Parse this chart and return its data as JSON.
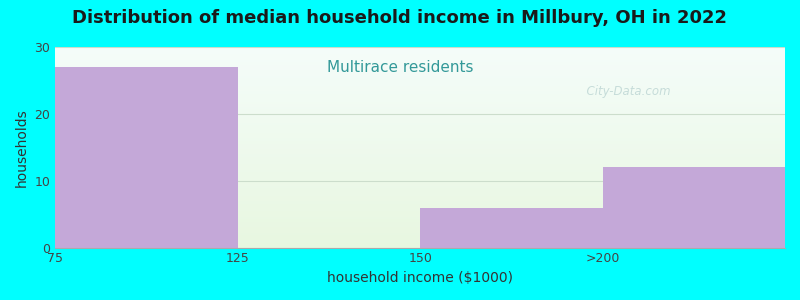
{
  "title": "Distribution of median household income in Millbury, OH in 2022",
  "subtitle": "Multirace residents",
  "xlabel": "household income ($1000)",
  "ylabel": "households",
  "background_color": "#00FFFF",
  "plot_bg_top": "#f5fafa",
  "plot_bg_bottom": "#e8f5e0",
  "bar_color": "#C4A8D8",
  "bar_edge_color": "#C4A8D8",
  "title_fontsize": 13,
  "subtitle_fontsize": 11,
  "subtitle_color": "#339999",
  "axis_label_fontsize": 10,
  "tick_fontsize": 9,
  "tick_color": "#444444",
  "values": [
    27,
    0,
    6,
    12
  ],
  "bar_lefts": [
    0,
    1,
    2,
    3
  ],
  "bar_width": 1,
  "xlim": [
    0,
    4
  ],
  "ylim": [
    0,
    30
  ],
  "yticks": [
    0,
    10,
    20,
    30
  ],
  "xtick_positions": [
    0,
    1,
    2,
    3
  ],
  "xtick_labels": [
    "75",
    "125",
    "150",
    ">200"
  ],
  "grid_color": "#ccddcc",
  "grid_linewidth": 0.8,
  "watermark_text": "  City-Data.com",
  "watermark_color": "#aac8c8",
  "watermark_alpha": 0.6
}
